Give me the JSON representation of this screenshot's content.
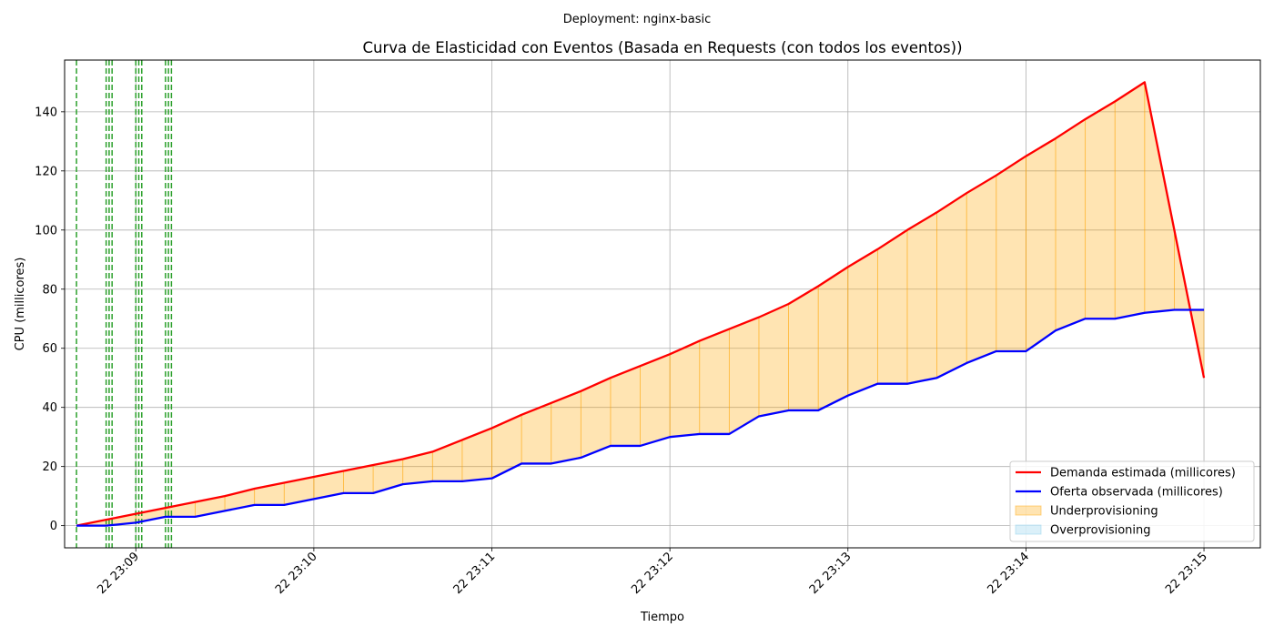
{
  "chart_data": {
    "type": "line",
    "suptitle": "Deployment: nginx-basic",
    "title": "Curva de Elasticidad con Eventos (Basada en Requests (con todos los eventos))",
    "xlabel": "Tiempo",
    "ylabel": "CPU (millicores)",
    "grid": true,
    "legend_position": "lower-right",
    "x_range": [
      "22 23:08:36",
      "22 23:15:19"
    ],
    "ylim": [
      -7.5,
      157.5
    ],
    "x_ticks": [
      {
        "time": "22 23:09:00",
        "label": "22 23:09"
      },
      {
        "time": "22 23:10:00",
        "label": "22 23:10"
      },
      {
        "time": "22 23:11:00",
        "label": "22 23:11"
      },
      {
        "time": "22 23:12:00",
        "label": "22 23:12"
      },
      {
        "time": "22 23:13:00",
        "label": "22 23:13"
      },
      {
        "time": "22 23:14:00",
        "label": "22 23:14"
      },
      {
        "time": "22 23:15:00",
        "label": "22 23:15"
      }
    ],
    "y_ticks": [
      0,
      20,
      40,
      60,
      80,
      100,
      120,
      140
    ],
    "x": [
      "22 23:08:40",
      "22 23:08:50",
      "22 23:09:00",
      "22 23:09:10",
      "22 23:09:20",
      "22 23:09:30",
      "22 23:09:40",
      "22 23:09:50",
      "22 23:10:00",
      "22 23:10:10",
      "22 23:10:20",
      "22 23:10:30",
      "22 23:10:40",
      "22 23:10:50",
      "22 23:11:00",
      "22 23:11:10",
      "22 23:11:20",
      "22 23:11:30",
      "22 23:11:40",
      "22 23:11:50",
      "22 23:12:00",
      "22 23:12:10",
      "22 23:12:20",
      "22 23:12:30",
      "22 23:12:40",
      "22 23:12:50",
      "22 23:13:00",
      "22 23:13:10",
      "22 23:13:20",
      "22 23:13:30",
      "22 23:13:40",
      "22 23:13:50",
      "22 23:14:00",
      "22 23:14:10",
      "22 23:14:20",
      "22 23:14:30",
      "22 23:14:40",
      "22 23:14:50",
      "22 23:15:00"
    ],
    "series": [
      {
        "name": "Demanda estimada (millicores)",
        "color": "#ff0000",
        "values": [
          0,
          2,
          4,
          6,
          8,
          10,
          12.5,
          14.5,
          16.5,
          18.5,
          20.5,
          22.5,
          25,
          29,
          33,
          37.5,
          41.5,
          45.5,
          50,
          54,
          58,
          62.5,
          66.5,
          70.5,
          75,
          81,
          87.5,
          93.5,
          100,
          106,
          112.5,
          118.5,
          125,
          131,
          137.5,
          143.5,
          150,
          100,
          50
        ]
      },
      {
        "name": "Oferta observada (millicores)",
        "color": "#0000ff",
        "values": [
          0,
          0,
          1,
          3,
          3,
          5,
          7,
          7,
          9,
          11,
          11,
          14,
          15,
          15,
          16,
          21,
          21,
          23,
          27,
          27,
          30,
          31,
          31,
          37,
          39,
          39,
          44,
          48,
          48,
          50,
          55,
          59,
          59,
          66,
          70,
          70,
          72,
          73,
          73
        ]
      }
    ],
    "fills": [
      {
        "name": "Underprovisioning",
        "color": "#ffa500",
        "between": [
          "Demanda estimada (millicores)",
          "Oferta observada (millicores)"
        ],
        "where": "demand_above_supply"
      },
      {
        "name": "Overprovisioning",
        "color": "#87ceeb",
        "between": [
          "Oferta observada (millicores)",
          "Demanda estimada (millicores)"
        ],
        "where": "supply_above_demand"
      }
    ],
    "event_lines": {
      "color": "#2ca02c",
      "style": "dashed",
      "times": [
        "22 23:08:40",
        "22 23:08:50",
        "22 23:08:51",
        "22 23:08:52",
        "22 23:09:00",
        "22 23:09:01",
        "22 23:09:02",
        "22 23:09:10",
        "22 23:09:11",
        "22 23:09:12"
      ]
    }
  }
}
